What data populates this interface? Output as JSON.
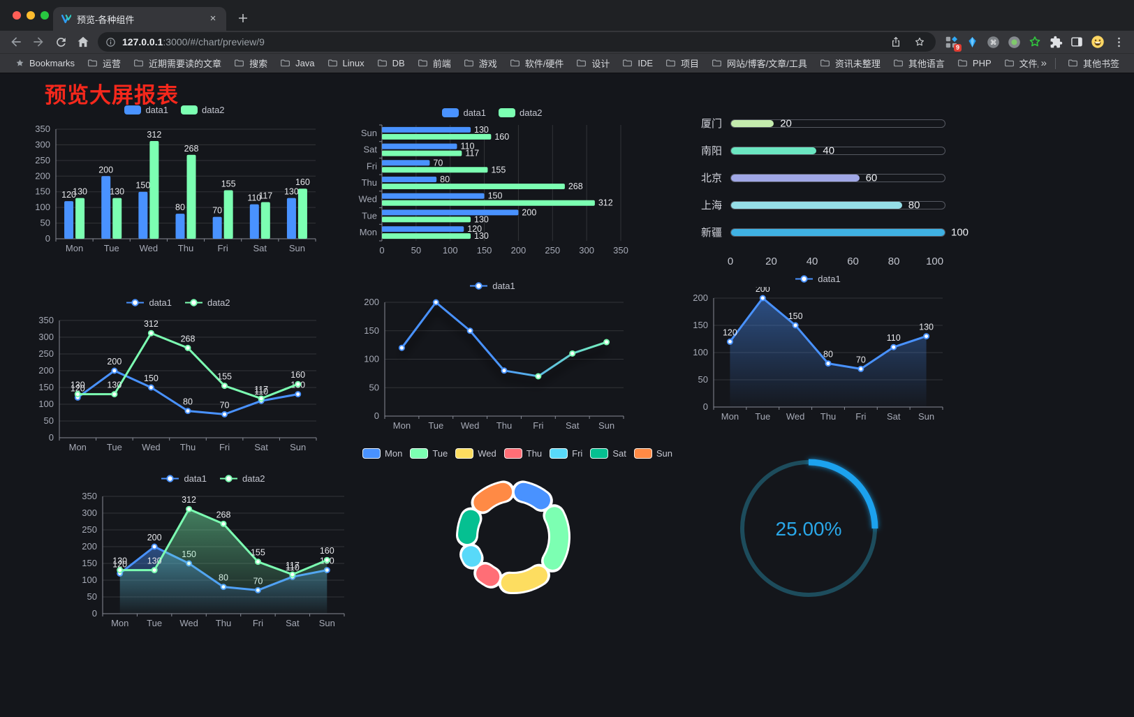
{
  "browser": {
    "traffic_lights": {
      "close": "#ff5f57",
      "minimize": "#febc2e",
      "zoom": "#28c840"
    },
    "tab": {
      "title": "预览-各种组件",
      "close_glyph": "×"
    },
    "url": {
      "host": "127.0.0.1",
      "rest": ":3000/#/chart/preview/9"
    },
    "extensions_badge": "9",
    "bookmarks_label": "Bookmarks",
    "bookmarks": [
      "运营",
      "近期需要读的文章",
      "搜索",
      "Java",
      "Linux",
      "DB",
      "前端",
      "游戏",
      "软件/硬件",
      "设计",
      "IDE",
      "项目",
      "网站/博客/文章/工具",
      "资讯未整理",
      "其他语言",
      "PHP",
      "文件服务器"
    ],
    "bookmarks_overflow": "»",
    "other_bookmarks": "其他书签"
  },
  "page": {
    "title": "预览大屏报表"
  },
  "chart_data": [
    {
      "id": "grouped-bar",
      "type": "bar",
      "categories": [
        "Mon",
        "Tue",
        "Wed",
        "Thu",
        "Fri",
        "Sat",
        "Sun"
      ],
      "series": [
        {
          "name": "data1",
          "color": "#4992ff",
          "values": [
            120,
            200,
            150,
            80,
            70,
            110,
            130
          ]
        },
        {
          "name": "data2",
          "color": "#7cffb2",
          "values": [
            130,
            130,
            312,
            268,
            155,
            117,
            160
          ]
        }
      ],
      "yticks": [
        0,
        50,
        100,
        150,
        200,
        250,
        300,
        350
      ],
      "ylim": [
        0,
        350
      ],
      "value_labels": true,
      "legend_position": "top",
      "grid": true
    },
    {
      "id": "grouped-hbar",
      "type": "hbar",
      "categories": [
        "Mon",
        "Tue",
        "Wed",
        "Thu",
        "Fri",
        "Sat",
        "Sun"
      ],
      "display_order_top_to_bottom": [
        "Sun",
        "Sat",
        "Fri",
        "Thu",
        "Wed",
        "Tue",
        "Mon"
      ],
      "series": [
        {
          "name": "data1",
          "color": "#4992ff",
          "values": [
            120,
            200,
            150,
            80,
            70,
            110,
            130
          ]
        },
        {
          "name": "data2",
          "color": "#7cffb2",
          "values": [
            130,
            130,
            312,
            268,
            155,
            117,
            160
          ]
        }
      ],
      "xticks": [
        0,
        50,
        100,
        150,
        200,
        250,
        300,
        350
      ],
      "xlim": [
        0,
        350
      ],
      "value_labels": true,
      "legend_position": "top",
      "grid": true
    },
    {
      "id": "city-progress",
      "type": "progress-bar",
      "max": 100,
      "rows": [
        {
          "label": "厦门",
          "value": 20,
          "color": "#c4ebad"
        },
        {
          "label": "南阳",
          "value": 40,
          "color": "#6be6c1"
        },
        {
          "label": "北京",
          "value": 60,
          "color": "#a0a7e6"
        },
        {
          "label": "上海",
          "value": 80,
          "color": "#96dee8"
        },
        {
          "label": "新疆",
          "value": 100,
          "color": "#3fb1e3"
        }
      ],
      "xticks": [
        0,
        20,
        40,
        60,
        80,
        100
      ]
    },
    {
      "id": "multi-line",
      "type": "line",
      "categories": [
        "Mon",
        "Tue",
        "Wed",
        "Thu",
        "Fri",
        "Sat",
        "Sun"
      ],
      "series": [
        {
          "name": "data1",
          "color": "#4992ff",
          "values": [
            120,
            200,
            150,
            80,
            70,
            110,
            130
          ]
        },
        {
          "name": "data2",
          "color": "#7cffb2",
          "values": [
            130,
            130,
            312,
            268,
            155,
            117,
            160
          ]
        }
      ],
      "yticks": [
        0,
        50,
        100,
        150,
        200,
        250,
        300,
        350
      ],
      "ylim": [
        0,
        350
      ],
      "value_labels": true,
      "legend_position": "top",
      "grid": true
    },
    {
      "id": "gradient-line",
      "type": "line",
      "categories": [
        "Mon",
        "Tue",
        "Wed",
        "Thu",
        "Fri",
        "Sat",
        "Sun"
      ],
      "series": [
        {
          "name": "data1",
          "color": "#4992ff",
          "color_end": "#7cffb2",
          "values": [
            120,
            200,
            150,
            80,
            70,
            110,
            130
          ]
        }
      ],
      "yticks": [
        0,
        50,
        100,
        150,
        200
      ],
      "ylim": [
        0,
        200
      ],
      "value_labels": false,
      "shadow": true,
      "legend_position": "top",
      "grid": true
    },
    {
      "id": "area-line",
      "type": "line",
      "categories": [
        "Mon",
        "Tue",
        "Wed",
        "Thu",
        "Fri",
        "Sat",
        "Sun"
      ],
      "series": [
        {
          "name": "data1",
          "color": "#4992ff",
          "area": true,
          "values": [
            120,
            200,
            150,
            80,
            70,
            110,
            130
          ]
        }
      ],
      "yticks": [
        0,
        50,
        100,
        150,
        200
      ],
      "ylim": [
        0,
        200
      ],
      "value_labels": true,
      "legend_position": "top",
      "grid": true
    },
    {
      "id": "double-area-line",
      "type": "line",
      "categories": [
        "Mon",
        "Tue",
        "Wed",
        "Thu",
        "Fri",
        "Sat",
        "Sun"
      ],
      "series": [
        {
          "name": "data1",
          "color": "#4992ff",
          "area": true,
          "values": [
            120,
            200,
            150,
            80,
            70,
            110,
            130
          ]
        },
        {
          "name": "data2",
          "color": "#7cffb2",
          "area": true,
          "values": [
            130,
            130,
            312,
            268,
            155,
            117,
            160
          ]
        }
      ],
      "yticks": [
        0,
        50,
        100,
        150,
        200,
        250,
        300,
        350
      ],
      "ylim": [
        0,
        350
      ],
      "value_labels": true,
      "legend_position": "top",
      "grid": true
    },
    {
      "id": "donut-pie",
      "type": "pie",
      "legend_position": "top",
      "slices": [
        {
          "label": "Mon",
          "value": 120,
          "color": "#4992ff"
        },
        {
          "label": "Tue",
          "value": 200,
          "color": "#7cffb2"
        },
        {
          "label": "Wed",
          "value": 150,
          "color": "#fddd60"
        },
        {
          "label": "Thu",
          "value": 80,
          "color": "#ff6e76"
        },
        {
          "label": "Fri",
          "value": 70,
          "color": "#58d9f9"
        },
        {
          "label": "Sat",
          "value": 110,
          "color": "#05c091"
        },
        {
          "label": "Sun",
          "value": 130,
          "color": "#ff8a45"
        }
      ]
    },
    {
      "id": "progress-gauge",
      "type": "gauge",
      "label": "25.00%",
      "percent": 25,
      "color": "#1ba2ee",
      "track_color": "#1d4c5c"
    }
  ]
}
